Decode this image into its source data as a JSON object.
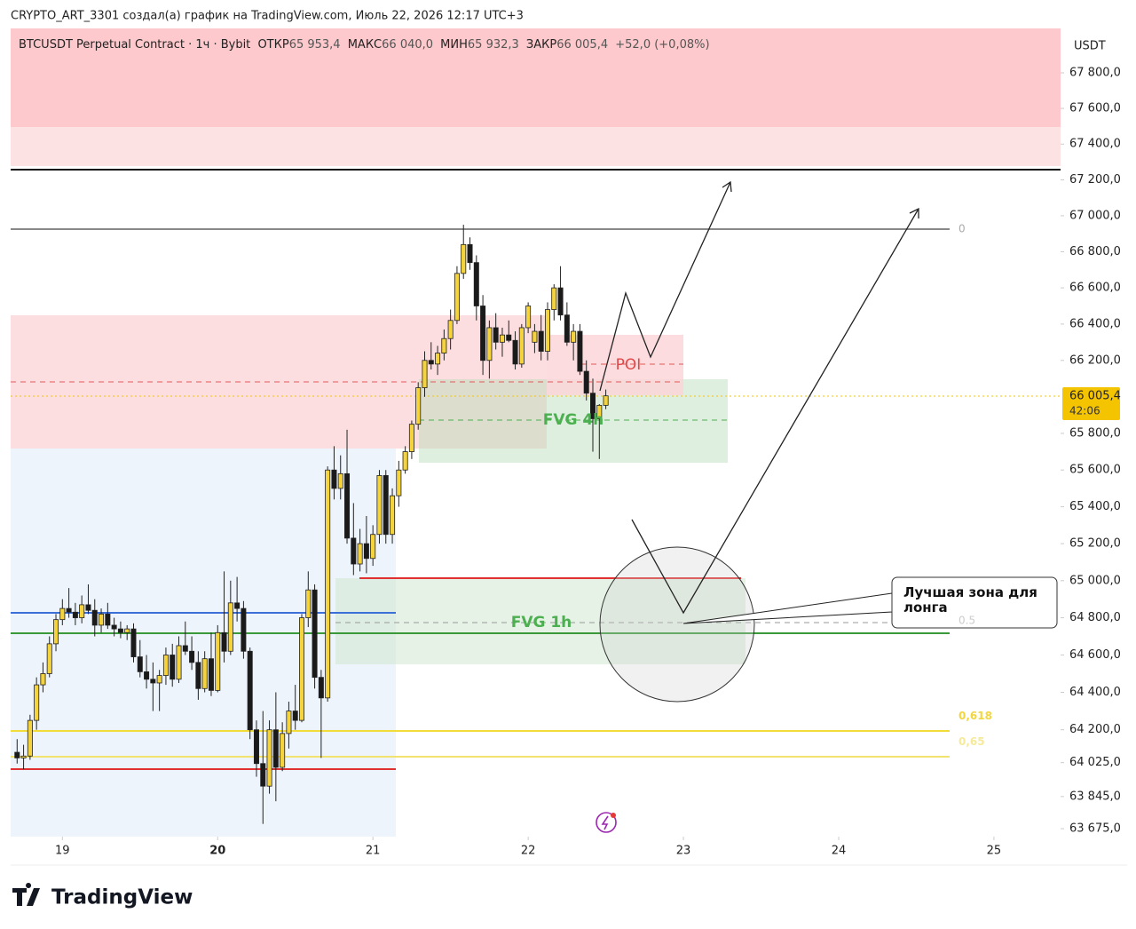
{
  "header": "CRYPTO_ART_3301 создал(а) график на TradingView.com, Июль 22, 2026 12:17 UTC+3",
  "legend": {
    "symbol": "BTCUSDT Perpetual Contract · 1ч · Bybit",
    "open_label": "ОТКР",
    "open": "65 953,4",
    "high_label": "МАКС",
    "high": "66 040,0",
    "low_label": "МИН",
    "low": "65 932,3",
    "close_label": "ЗАКР",
    "close": "66 005,4",
    "change": "+52,0 (+0,08%)"
  },
  "currency": "USDT",
  "brand": "TradingView",
  "last_price": {
    "value": 66005.4,
    "label": "66 005,4"
  },
  "countdown": "42:06",
  "annotations": {
    "poi": "POI",
    "fvg_4h": "FVG 4h",
    "fvg_1h": "FVG 1h",
    "callout": "Лучшая зона для лонга"
  },
  "fib_levels": [
    0,
    0.5,
    {
      "value": 0.618,
      "label": "0,618"
    },
    {
      "value": 0.65,
      "label": "0,65"
    }
  ],
  "chart_data": {
    "type": "candlestick",
    "log": true,
    "up_color": "#f5d33c",
    "down_color": "#1a1a1a",
    "xlim": [
      -8,
      154.3
    ],
    "xticks": [
      {
        "value": 0,
        "label": "19"
      },
      {
        "value": 24,
        "label": "20"
      },
      {
        "value": 48,
        "label": "21"
      },
      {
        "value": 72,
        "label": "22"
      },
      {
        "value": 96,
        "label": "23"
      },
      {
        "value": 120,
        "label": "24"
      },
      {
        "value": 144,
        "label": "25"
      }
    ],
    "ylim": [
      63632.7,
      68050.6
    ],
    "yticks": [
      {
        "value": 67800,
        "label": "67 800,0"
      },
      {
        "value": 67600,
        "label": "67 600,0"
      },
      {
        "value": 67400,
        "label": "67 400,0"
      },
      {
        "value": 67200,
        "label": "67 200,0"
      },
      {
        "value": 67000,
        "label": "67 000,0"
      },
      {
        "value": 66800,
        "label": "66 800,0"
      },
      {
        "value": 66600,
        "label": "66 600,0"
      },
      {
        "value": 66400,
        "label": "66 400,0"
      },
      {
        "value": 66200,
        "label": "66 200,0"
      },
      {
        "value": 65800,
        "label": "65 800,0"
      },
      {
        "value": 65600,
        "label": "65 600,0"
      },
      {
        "value": 65400,
        "label": "65 400,0"
      },
      {
        "value": 65200,
        "label": "65 200,0"
      },
      {
        "value": 65000,
        "label": "65 000,0"
      },
      {
        "value": 64800,
        "label": "64 800,0"
      },
      {
        "value": 64600,
        "label": "64 600,0"
      },
      {
        "value": 64400,
        "label": "64 400,0"
      },
      {
        "value": 64200,
        "label": "64 200,0"
      },
      {
        "value": 64025,
        "label": "64 025,0"
      },
      {
        "value": 63845,
        "label": "63 845,0"
      },
      {
        "value": 63675,
        "label": "63 675,0"
      }
    ],
    "x": [
      -7,
      -6,
      -5,
      -4,
      -3,
      -2,
      -1,
      0,
      1,
      2,
      3,
      4,
      5,
      6,
      7,
      8,
      9,
      10,
      11,
      12,
      13,
      14,
      15,
      16,
      17,
      18,
      19,
      20,
      21,
      22,
      23,
      24,
      25,
      26,
      27,
      28,
      29,
      30,
      31,
      32,
      33,
      34,
      35,
      36,
      37,
      38,
      39,
      40,
      41,
      42,
      43,
      44,
      45,
      46,
      47,
      48,
      49,
      50,
      51,
      52,
      53,
      54,
      55,
      56,
      57,
      58,
      59,
      60,
      61,
      62,
      63,
      64,
      65,
      66,
      67,
      68,
      69,
      70,
      71,
      72,
      73,
      74,
      75,
      76,
      77,
      78,
      79,
      80,
      81,
      82,
      83,
      84
    ],
    "open": [
      64080,
      64050,
      64060,
      64250,
      64440,
      64500,
      64660,
      64790,
      64850,
      64830,
      64800,
      64870,
      64840,
      64760,
      64820,
      64760,
      64740,
      64720,
      64740,
      64590,
      64510,
      64470,
      64450,
      64490,
      64600,
      64470,
      64650,
      64620,
      64560,
      64420,
      64580,
      64410,
      64720,
      64620,
      64880,
      64850,
      64620,
      64200,
      64020,
      63900,
      64200,
      64000,
      64180,
      64300,
      64250,
      64800,
      64950,
      64480,
      64370,
      65600,
      65500,
      65580,
      65230,
      65090,
      65200,
      65120,
      65250,
      65570,
      65250,
      65460,
      65600,
      65700,
      65850,
      66050,
      66200,
      66180,
      66240,
      66320,
      66420,
      66680,
      66840,
      66740,
      66500,
      66200,
      66380,
      66300,
      66340,
      66310,
      66180,
      66380,
      66300,
      66360,
      66250,
      66480,
      66600,
      66450,
      66300,
      66360,
      66140,
      66020,
      65880,
      65953.4
    ],
    "high": [
      64150,
      64120,
      64280,
      64480,
      64560,
      64700,
      64820,
      64900,
      64960,
      64880,
      64920,
      64980,
      64900,
      64850,
      64880,
      64800,
      64780,
      64760,
      64770,
      64680,
      64600,
      64560,
      64520,
      64640,
      64660,
      64700,
      64780,
      64700,
      64620,
      64620,
      64720,
      64760,
      65050,
      65000,
      65020,
      64890,
      64640,
      64250,
      64300,
      64250,
      64400,
      64240,
      64350,
      64440,
      64820,
      65050,
      64980,
      64520,
      65620,
      65730,
      65680,
      65820,
      65420,
      65280,
      65350,
      65300,
      65600,
      65600,
      65500,
      65650,
      65730,
      65870,
      66080,
      66250,
      66300,
      66280,
      66370,
      66480,
      66720,
      66950,
      66880,
      66780,
      66560,
      66420,
      66460,
      66380,
      66420,
      66360,
      66400,
      66520,
      66400,
      66450,
      66520,
      66620,
      66720,
      66520,
      66400,
      66400,
      66200,
      66100,
      65960,
      66040
    ],
    "low": [
      64020,
      63990,
      64040,
      64200,
      64400,
      64480,
      64620,
      64760,
      64800,
      64760,
      64770,
      64820,
      64700,
      64720,
      64740,
      64700,
      64690,
      64680,
      64560,
      64480,
      64420,
      64300,
      64300,
      64440,
      64430,
      64450,
      64600,
      64520,
      64360,
      64400,
      64380,
      64400,
      64560,
      64600,
      64780,
      64580,
      64150,
      63950,
      63700,
      63860,
      63820,
      63980,
      64100,
      64200,
      64240,
      64750,
      64420,
      64050,
      64350,
      65440,
      65440,
      65200,
      65030,
      65050,
      65040,
      65080,
      65200,
      65200,
      65200,
      65400,
      65580,
      65660,
      65820,
      66000,
      66150,
      66120,
      66200,
      66260,
      66400,
      66650,
      66700,
      66420,
      66120,
      66100,
      66260,
      66220,
      66300,
      66150,
      66160,
      66350,
      66240,
      66200,
      66200,
      66420,
      66420,
      66280,
      66200,
      66120,
      65980,
      65700,
      65660,
      65932.3
    ],
    "close": [
      64050,
      64060,
      64250,
      64440,
      64500,
      64660,
      64790,
      64850,
      64830,
      64800,
      64870,
      64840,
      64760,
      64820,
      64760,
      64740,
      64720,
      64740,
      64590,
      64510,
      64470,
      64450,
      64490,
      64600,
      64470,
      64650,
      64620,
      64560,
      64420,
      64580,
      64410,
      64720,
      64620,
      64880,
      64850,
      64620,
      64200,
      64020,
      63900,
      64200,
      64000,
      64180,
      64300,
      64250,
      64800,
      64950,
      64480,
      64370,
      65600,
      65500,
      65580,
      65230,
      65090,
      65200,
      65120,
      65250,
      65570,
      65250,
      65460,
      65600,
      65700,
      65850,
      66050,
      66200,
      66180,
      66240,
      66320,
      66420,
      66680,
      66840,
      66740,
      66500,
      66200,
      66380,
      66300,
      66340,
      66310,
      66180,
      66380,
      66500,
      66360,
      66250,
      66480,
      66600,
      66450,
      66300,
      66360,
      66140,
      66020,
      65880,
      65953.4,
      66005.4
    ]
  }
}
